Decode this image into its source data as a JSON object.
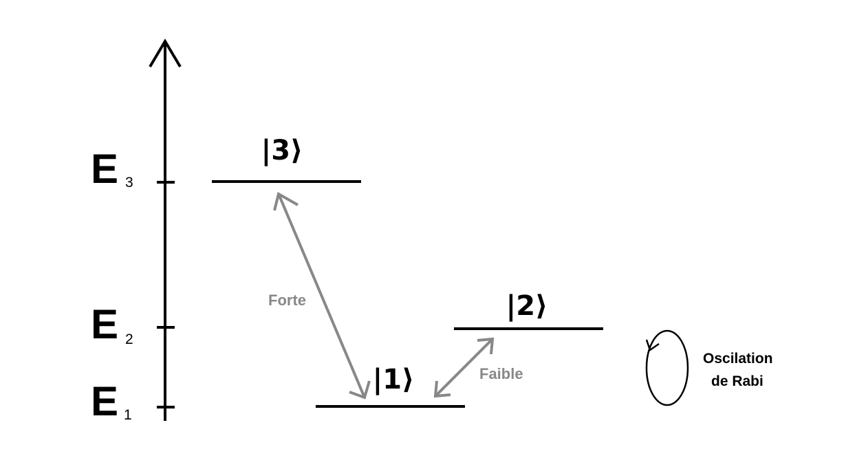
{
  "diagram": {
    "axis": {
      "levels": [
        {
          "label": "E",
          "sub": "3"
        },
        {
          "label": "E",
          "sub": "2"
        },
        {
          "label": "E",
          "sub": "1"
        }
      ]
    },
    "states": [
      {
        "ket": "|3⟩"
      },
      {
        "ket": "|2⟩"
      },
      {
        "ket": "|1⟩"
      }
    ],
    "couplings": {
      "strong": "Forte",
      "weak": "Faible"
    },
    "rabi": {
      "line1": "Oscilation",
      "line2": "de Rabi"
    },
    "colors": {
      "ink": "#000000",
      "coupling": "#888888"
    }
  }
}
